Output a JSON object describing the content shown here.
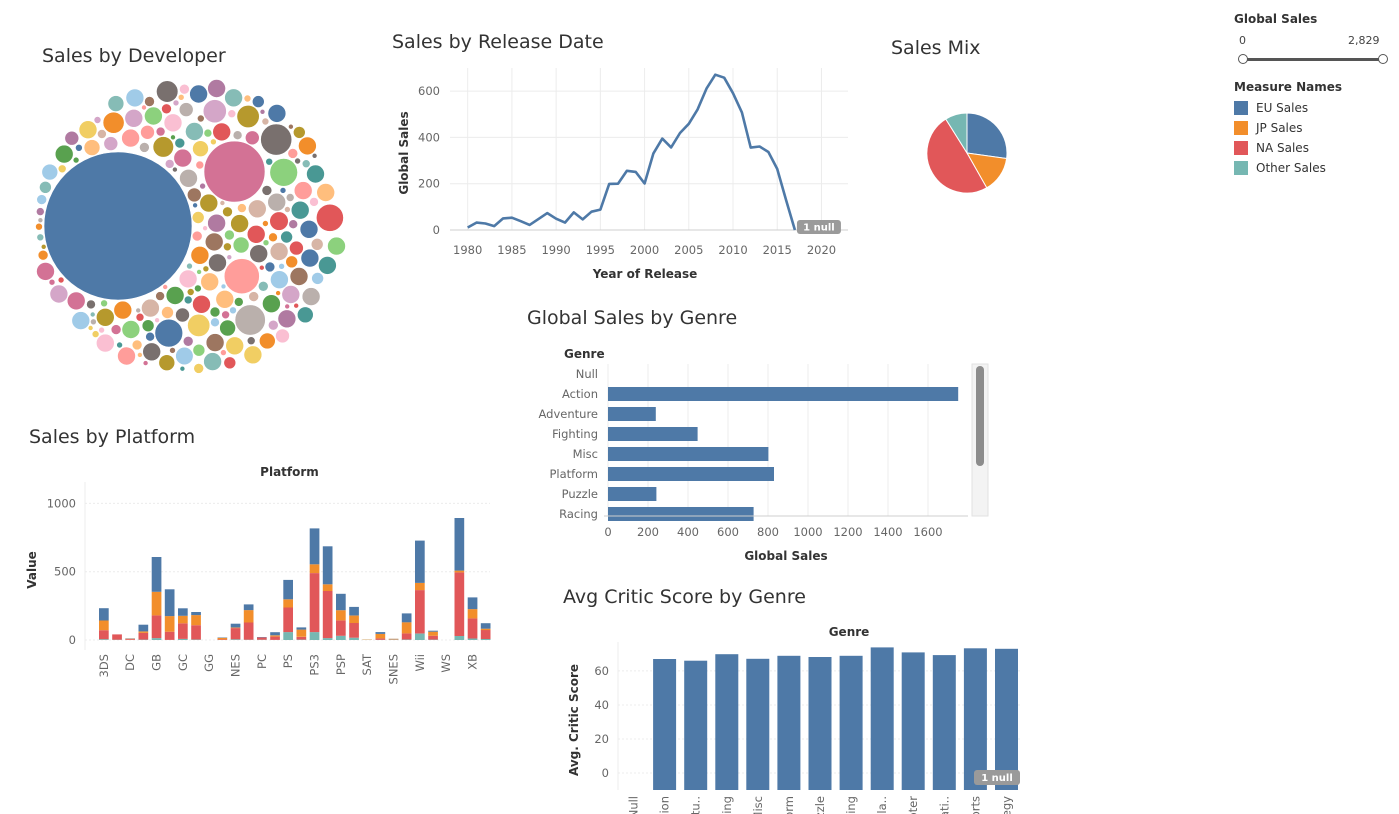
{
  "titles": {
    "developer": "Sales by Developer",
    "release": "Sales by Release Date",
    "mix": "Sales Mix",
    "platform": "Sales by Platform",
    "genre": "Global Sales by Genre",
    "critic": "Avg Critic Score by Genre"
  },
  "legend": {
    "filter_title": "Global Sales",
    "filter_min": "0",
    "filter_max": "2,829",
    "filter_range": [
      0,
      2829
    ],
    "filter_selected": [
      0,
      2829
    ],
    "title": "Measure Names",
    "items": [
      {
        "label": "EU Sales",
        "color": "#4e79a7"
      },
      {
        "label": "JP Sales",
        "color": "#f28e2b"
      },
      {
        "label": "NA Sales",
        "color": "#e15759"
      },
      {
        "label": "Other Sales",
        "color": "#76b7b2"
      }
    ]
  },
  "chart_data": [
    {
      "id": "developer",
      "type": "bubble",
      "title": "Sales by Developer",
      "note": "packed bubbles, one per developer; only the largest are listed individually",
      "bubbles": [
        {
          "value": 2829,
          "color": "#4e79a7"
        },
        {
          "value": 480,
          "color": "#d37295"
        },
        {
          "value": 160,
          "color": "#ff9d9a"
        },
        {
          "value": 120,
          "color": "#bab0ac"
        },
        {
          "value": 125,
          "color": "#79706e"
        },
        {
          "value": 95,
          "color": "#e15759"
        },
        {
          "value": 100,
          "color": "#4e79a7"
        },
        {
          "value": 100,
          "color": "#8cd17d"
        },
        {
          "value": 65,
          "color": "#f1ce63"
        },
        {
          "value": 65,
          "color": "#b6992d"
        },
        {
          "value": 70,
          "color": "#d4a6c8"
        },
        {
          "value": 60,
          "color": "#79706e"
        },
        {
          "value": 58,
          "color": "#f28e2b"
        },
        {
          "value": 55,
          "color": "#b6992d"
        },
        {
          "value": 45,
          "color": "#e15759"
        },
        {
          "value": 40,
          "color": "#a0cbe8"
        }
      ],
      "small_bubble_palette": [
        "#4e79a7",
        "#a0cbe8",
        "#f28e2b",
        "#ffbe7d",
        "#59a14f",
        "#8cd17d",
        "#b6992d",
        "#f1ce63",
        "#499894",
        "#86bcb6",
        "#e15759",
        "#ff9d9a",
        "#79706e",
        "#bab0ac",
        "#d37295",
        "#fabfd2",
        "#b07aa1",
        "#d4a6c8",
        "#9d7660",
        "#d7b5a6"
      ]
    },
    {
      "id": "release",
      "type": "line",
      "title": "Sales by Release Date",
      "xlabel": "Year of Release",
      "ylabel": "Global Sales",
      "x": [
        1980,
        1981,
        1982,
        1983,
        1984,
        1985,
        1986,
        1987,
        1988,
        1989,
        1990,
        1991,
        1992,
        1993,
        1994,
        1995,
        1996,
        1997,
        1998,
        1999,
        2000,
        2001,
        2002,
        2003,
        2004,
        2005,
        2006,
        2007,
        2008,
        2009,
        2010,
        2011,
        2012,
        2013,
        2014,
        2015,
        2016,
        2017
      ],
      "values": [
        11,
        32,
        28,
        17,
        50,
        53,
        38,
        22,
        47,
        73,
        49,
        32,
        76,
        46,
        79,
        88,
        199,
        200,
        256,
        251,
        201,
        331,
        395,
        357,
        419,
        459,
        521,
        611,
        671,
        658,
        591,
        508,
        356,
        361,
        337,
        264,
        129,
        0
      ],
      "xticks": [
        1980,
        1985,
        1990,
        1995,
        2000,
        2005,
        2010,
        2015,
        2020
      ],
      "yticks": [
        0,
        200,
        400,
        600
      ],
      "xlim": [
        1978,
        2023
      ],
      "ylim": [
        0,
        700
      ],
      "color": "#4e79a7",
      "null_badge": "1 null"
    },
    {
      "id": "mix",
      "type": "pie",
      "title": "Sales Mix",
      "slices": [
        {
          "label": "EU Sales",
          "value": 27.2,
          "color": "#4e79a7"
        },
        {
          "label": "JP Sales",
          "value": 14.6,
          "color": "#f28e2b"
        },
        {
          "label": "NA Sales",
          "value": 49.3,
          "color": "#e15759"
        },
        {
          "label": "Other Sales",
          "value": 8.9,
          "color": "#76b7b2"
        }
      ]
    },
    {
      "id": "platform",
      "type": "bar",
      "stacked": true,
      "title": "Sales by Platform",
      "header": "Platform",
      "ylabel": "Value",
      "yticks": [
        0,
        500,
        1000
      ],
      "ylim": [
        0,
        1230
      ],
      "categories": [
        "3DS",
        "",
        "DC",
        "",
        "GB",
        "",
        "GC",
        "",
        "GG",
        "",
        "NES",
        "",
        "PC",
        "",
        "PS",
        "",
        "PS3",
        "",
        "PSP",
        "",
        "SAT",
        "",
        "SNES",
        "",
        "Wii",
        "",
        "WS",
        "",
        "XB",
        ""
      ],
      "series": [
        {
          "name": "Other Sales",
          "color": "#76b7b2",
          "values": [
            6,
            2,
            0,
            3,
            14,
            1,
            8,
            3,
            0,
            0,
            5,
            2,
            2,
            1,
            58,
            3,
            58,
            14,
            31,
            17,
            2,
            2,
            3,
            3,
            47,
            3,
            0,
            29,
            11,
            7
          ]
        },
        {
          "name": "NA Sales",
          "color": "#e15759",
          "values": [
            66,
            39,
            6,
            49,
            166,
            60,
            114,
            105,
            0,
            4,
            82,
            126,
            16,
            24,
            180,
            20,
            432,
            345,
            112,
            108,
            0,
            10,
            2,
            45,
            318,
            28,
            0,
            466,
            147,
            66
          ]
        },
        {
          "name": "JP Sales",
          "color": "#f28e2b",
          "values": [
            71,
            0,
            4,
            11,
            173,
            114,
            55,
            74,
            0,
            12,
            4,
            91,
            0,
            9,
            60,
            53,
            64,
            49,
            75,
            54,
            2,
            33,
            4,
            82,
            53,
            30,
            0,
            13,
            68,
            10
          ]
        },
        {
          "name": "EU Sales",
          "color": "#4e79a7",
          "values": [
            90,
            0,
            2,
            49,
            255,
            196,
            55,
            23,
            0,
            3,
            28,
            42,
            3,
            23,
            142,
            16,
            263,
            278,
            120,
            63,
            0,
            13,
            1,
            65,
            310,
            7,
            0,
            385,
            86,
            40
          ]
        }
      ]
    },
    {
      "id": "genre",
      "type": "bar",
      "orientation": "horizontal",
      "title": "Global Sales by Genre",
      "header": "Genre",
      "xlabel": "Global Sales",
      "categories": [
        "Null",
        "Action",
        "Adventure",
        "Fighting",
        "Misc",
        "Platform",
        "Puzzle",
        "Racing"
      ],
      "values": [
        0,
        1751,
        239,
        448,
        802,
        830,
        242,
        728
      ],
      "xticks": [
        0,
        200,
        400,
        600,
        800,
        1000,
        1200,
        1400,
        1600
      ],
      "xlim": [
        -20,
        1800
      ],
      "color": "#4e79a7"
    },
    {
      "id": "critic",
      "type": "bar",
      "title": "Avg Critic Score by Genre",
      "header": "Genre",
      "ylabel": "Avg. Critic Score",
      "categories": [
        "Null",
        "ion",
        "tu..",
        "ing",
        "Misc",
        "orm",
        "zzle",
        "cing",
        "la..",
        "oter",
        "ati..",
        "orts",
        "egy"
      ],
      "values": [
        0,
        67.0,
        66.0,
        69.8,
        67.1,
        68.9,
        68.2,
        68.9,
        73.8,
        70.9,
        69.3,
        73.3,
        73.0
      ],
      "yticks": [
        0,
        20,
        40,
        60
      ],
      "ylim": [
        -10,
        77
      ],
      "color": "#4e79a7",
      "null_badge": "1 null"
    }
  ]
}
